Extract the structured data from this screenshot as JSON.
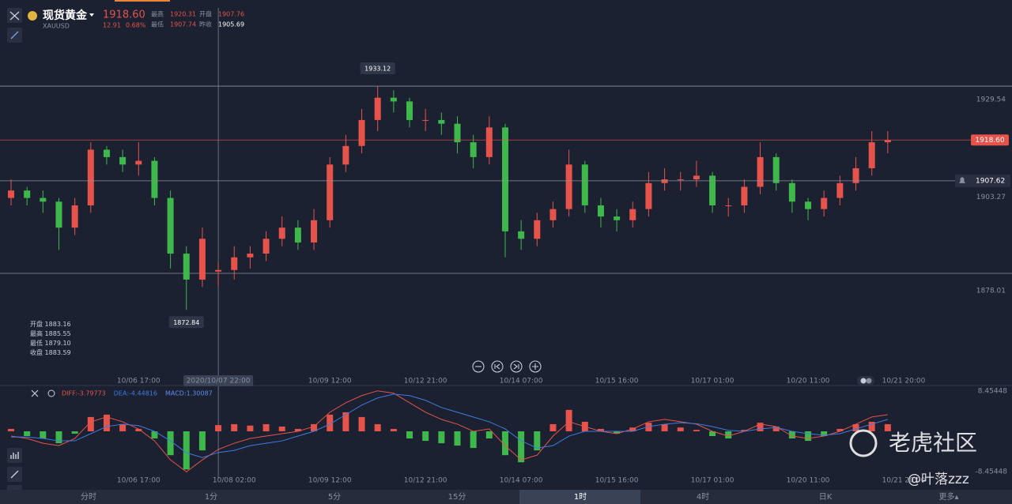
{
  "header": {
    "name": "现货黄金",
    "code": "XAUUSD",
    "price": "1918.60",
    "change": "12.91",
    "change_pct": "0.68%",
    "stats": [
      {
        "label": "最高",
        "value": "1920.31"
      },
      {
        "label": "开盘",
        "value": "1907.76"
      },
      {
        "label": "最低",
        "value": "1907.74"
      },
      {
        "label": "昨收",
        "value": "1905.69"
      }
    ]
  },
  "crosshair": {
    "rows": [
      {
        "label": "开盘",
        "value": "1883.16"
      },
      {
        "label": "最高",
        "value": "1885.55"
      },
      {
        "label": "最低",
        "value": "1879.10"
      },
      {
        "label": "收盘",
        "value": "1883.59"
      }
    ]
  },
  "timeframes": [
    "分时",
    "1分",
    "5分",
    "15分",
    "1时",
    "4时",
    "日K",
    "更多▴"
  ],
  "watermark": {
    "brand": "老虎社区",
    "user": "@叶落zzz"
  },
  "chart_data": [
    {
      "type": "candlestick",
      "up_color": "#e5534b",
      "down_color": "#3fb84b",
      "categories": [
        null,
        null,
        null,
        null,
        null,
        null,
        null,
        null,
        "10/06 17:00",
        null,
        null,
        null,
        null,
        "2020/10/07 22:00",
        null,
        null,
        null,
        null,
        null,
        null,
        "10/09 12:00",
        null,
        null,
        null,
        null,
        null,
        "10/12 21:00",
        null,
        null,
        null,
        null,
        null,
        "10/14 07:00",
        null,
        null,
        null,
        null,
        null,
        "10/15 16:00",
        null,
        null,
        null,
        null,
        null,
        "10/17 01:00",
        null,
        null,
        null,
        null,
        null,
        "10/20 11:00",
        null,
        null,
        null,
        null,
        null,
        "10/21 20:00"
      ],
      "open": [
        1903,
        1905,
        1903,
        1902,
        1895,
        1901,
        1916,
        1914,
        1912,
        1913,
        1903,
        1888,
        1881,
        1883.16,
        1883.59,
        1887,
        1888,
        1892,
        1895,
        1891,
        1897,
        1912,
        1917,
        1924,
        1930,
        1929,
        1924,
        1924,
        1923,
        1918,
        1914,
        1922,
        1894,
        1892,
        1897,
        1900,
        1912,
        1901,
        1898,
        1897,
        1900,
        1907,
        1908,
        1908,
        1909,
        1901,
        1901,
        1906,
        1914,
        1907,
        1902,
        1900,
        1903,
        1907,
        1911,
        1918,
        null
      ],
      "high": [
        1908,
        1906,
        1905,
        1903,
        1903,
        1918,
        1917,
        1916,
        1918,
        1914,
        1905,
        1890,
        1895,
        1885.55,
        1890,
        1890,
        1894,
        1898,
        1897,
        1900,
        1914,
        1920,
        1927,
        1933.12,
        1932,
        1930,
        1927,
        1926,
        1925,
        1920,
        1925,
        1923,
        1897,
        1899,
        1902,
        1916,
        1913,
        1903,
        1900,
        1902,
        1910,
        1911,
        1910,
        1913,
        1910,
        1903,
        1908,
        1918,
        1915,
        1908,
        1903,
        1905,
        1909,
        1914,
        1921,
        1921,
        null
      ],
      "low": [
        1901,
        1901,
        1899,
        1889,
        1893,
        1899,
        1912,
        1910,
        1909,
        1901,
        1884,
        1872.84,
        1879,
        1879.1,
        1881,
        1884,
        1886,
        1890,
        1889,
        1889,
        1895,
        1910,
        1915,
        1921,
        1926,
        1922,
        1921,
        1920,
        1915,
        1911,
        1912,
        1887,
        1889,
        1890,
        1895,
        1898,
        1899,
        1895,
        1894,
        1895,
        1898,
        1905,
        1905,
        1906,
        1899,
        1898,
        1899,
        1904,
        1905,
        1899,
        1897,
        1898,
        1901,
        1905,
        1909,
        1915,
        null
      ],
      "close": [
        1905,
        1903,
        1902,
        1895,
        1901,
        1916,
        1914,
        1912,
        1913,
        1903,
        1888,
        1881,
        1892,
        1883.59,
        1887,
        1888,
        1892,
        1895,
        1891,
        1897,
        1912,
        1917,
        1924,
        1930,
        1929,
        1924,
        1924,
        1923,
        1918,
        1914,
        1922,
        1894,
        1892,
        1897,
        1900,
        1912,
        1901,
        1898,
        1897,
        1900,
        1907,
        1908,
        1908,
        1909,
        1901,
        1901,
        1906,
        1914,
        1907,
        1902,
        1900,
        1903,
        1907,
        1911,
        1918,
        1918.6,
        null
      ],
      "ylim": [
        1856.3,
        1954.2
      ],
      "yticks": [
        1929.54,
        1903.27,
        1878.01
      ],
      "price_line": {
        "value": 1918.6,
        "label": "1918.60",
        "color": "#e5534b"
      },
      "alert_line": {
        "value": 1907.62,
        "label": "1907.62",
        "color": "#8a8f9c"
      }
    },
    {
      "type": "macd",
      "categories": [
        null,
        null,
        null,
        null,
        null,
        null,
        null,
        null,
        "10/06 17:00",
        null,
        null,
        null,
        null,
        null,
        "10/08 02:00",
        null,
        null,
        null,
        null,
        null,
        "10/09 12:00",
        null,
        null,
        null,
        null,
        null,
        "10/12 21:00",
        null,
        null,
        null,
        null,
        null,
        "10/14 07:00",
        null,
        null,
        null,
        null,
        null,
        "10/15 16:00",
        null,
        null,
        null,
        null,
        null,
        "10/17 01:00",
        null,
        null,
        null,
        null,
        null,
        "10/20 11:00",
        null,
        null,
        null,
        null,
        null,
        "10/21 20:00"
      ],
      "ylim": [
        -9.78,
        9.28
      ],
      "yticks": [
        8.45448,
        -8.45448
      ],
      "series": [
        {
          "name": "DIFF:-3.79773",
          "color": "#e5534b",
          "kind": "line",
          "values": [
            -1,
            -1.5,
            -2.5,
            -3,
            -1.5,
            2,
            3,
            2,
            0.5,
            -2,
            -6,
            -8.5,
            -6,
            -3.79773,
            -2.5,
            -1.5,
            -1,
            -0.5,
            0,
            1,
            4,
            6,
            7.5,
            8.5,
            8,
            6,
            4,
            2.5,
            1.5,
            0,
            0.5,
            -3,
            -6,
            -5,
            -1,
            2,
            1,
            0,
            -0.5,
            0.5,
            2,
            2.5,
            2,
            1.5,
            0,
            -1,
            0,
            1.5,
            1,
            -1,
            -1.5,
            -1,
            0,
            1.5,
            3,
            3.5,
            null
          ]
        },
        {
          "name": "DEA:-4.44816",
          "color": "#3d7be0",
          "kind": "line",
          "values": [
            -1.2,
            -1.2,
            -1.5,
            -2,
            -2,
            -0.5,
            1,
            1.5,
            1.2,
            0,
            -2,
            -4.5,
            -5.5,
            -4.44816,
            -4,
            -3,
            -2.5,
            -2,
            -1,
            0,
            1.5,
            3.5,
            5.5,
            7,
            7.8,
            7.5,
            6.5,
            5,
            4,
            3,
            2,
            0.5,
            -2,
            -3.5,
            -3,
            -1,
            0,
            0,
            0,
            0,
            1,
            1.5,
            1.8,
            1.6,
            1,
            0.2,
            0,
            0.5,
            0.8,
            0,
            -0.5,
            -0.8,
            -0.5,
            0.5,
            1.5,
            2.5,
            null
          ]
        },
        {
          "name": "MACD:1.30087",
          "color": "#5b8def",
          "kind": "histogram",
          "up_color": "#e5534b",
          "down_color": "#3fb84b",
          "values": [
            0.5,
            -1,
            -1.5,
            -2.5,
            -0.5,
            3,
            3.5,
            1.5,
            0.5,
            -1.5,
            -5,
            -8,
            -4,
            1.30087,
            1.5,
            1.2,
            1.5,
            1,
            0.5,
            1.5,
            3.5,
            4,
            3,
            1.5,
            0.5,
            -1.5,
            -2,
            -2.5,
            -3,
            -3.5,
            -1.5,
            -5,
            -6.5,
            -4,
            1.5,
            4.5,
            2,
            0.5,
            -0.5,
            0.8,
            1.8,
            1.5,
            0.8,
            0.3,
            -1,
            -1.5,
            0.3,
            1.8,
            1,
            -1.5,
            -2,
            -1,
            0.5,
            1.5,
            2,
            1.5,
            null
          ]
        }
      ]
    }
  ]
}
